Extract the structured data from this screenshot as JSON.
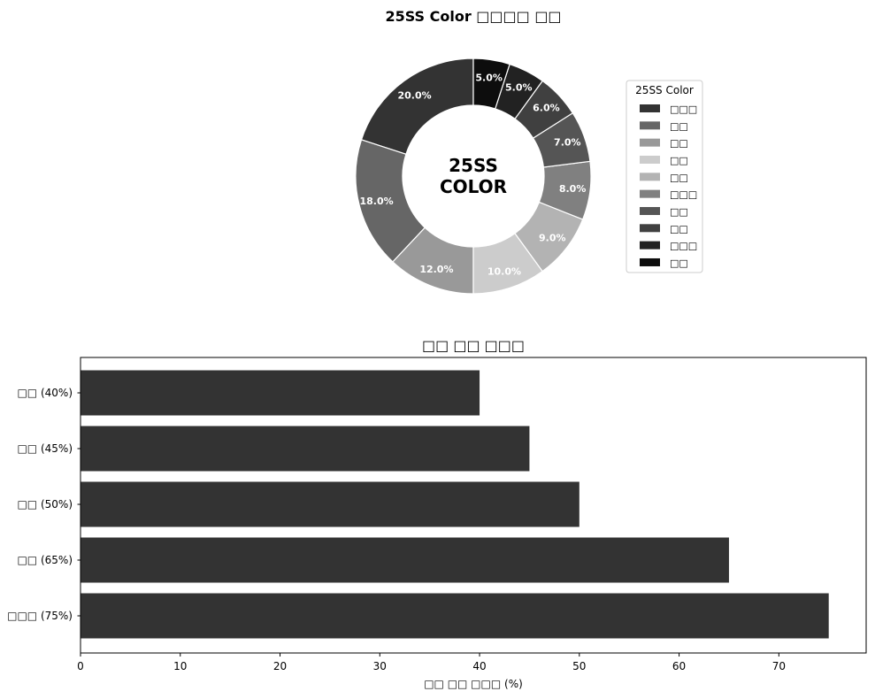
{
  "chart_data": [
    {
      "type": "pie",
      "style": "donut",
      "title": "25SS Color □□□□ □□",
      "center_label": [
        "25SS",
        "COLOR"
      ],
      "legend_title": "25SS Color",
      "legend_position": "right",
      "start_angle": 90,
      "direction": "counterclockwise",
      "labels": [
        "□□□",
        "□□",
        "□□",
        "□□",
        "□□",
        "□□□",
        "□□",
        "□□",
        "□□□",
        "□□"
      ],
      "values": [
        20,
        18,
        12,
        10,
        9,
        8,
        7,
        6,
        5,
        5
      ],
      "value_labels": [
        "20.0%",
        "18.0%",
        "12.0%",
        "10.0%",
        "9.0%",
        "8.0%",
        "7.0%",
        "6.0%",
        "5.0%",
        "5.0%"
      ],
      "colors": [
        "#333333",
        "#666666",
        "#999999",
        "#cccccc",
        "#b3b3b3",
        "#808080",
        "#555555",
        "#404040",
        "#222222",
        "#0d0d0d"
      ]
    },
    {
      "type": "bar",
      "orientation": "horizontal",
      "title": "□□ □□ □□□",
      "categories": [
        "□□□ (75%)",
        "□□ (65%)",
        "□□ (50%)",
        "□□ (45%)",
        "□□ (40%)"
      ],
      "values": [
        75,
        65,
        50,
        45,
        40
      ],
      "xlabel": "□□ □□ □□□ (%)",
      "ylabel": "",
      "xlim": [
        0,
        78.75
      ],
      "xticks": [
        0,
        10,
        20,
        30,
        40,
        50,
        60,
        70
      ],
      "bar_color": "#333333",
      "grid": false
    }
  ]
}
